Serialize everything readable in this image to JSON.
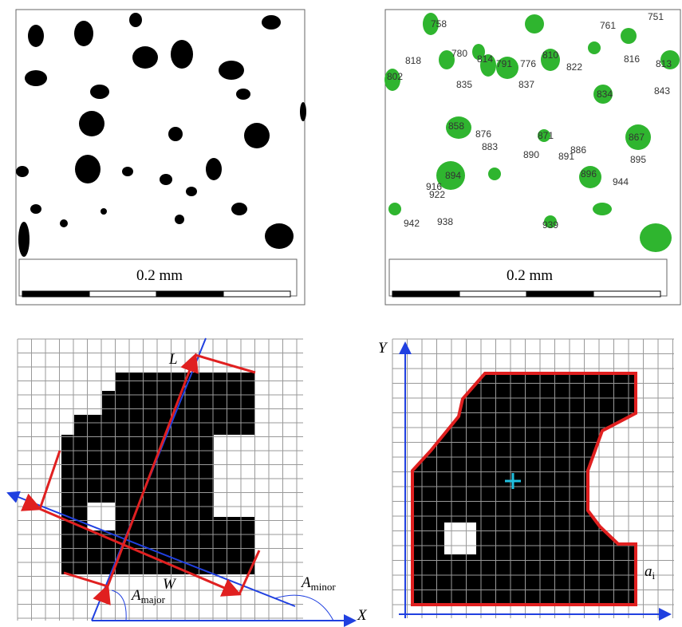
{
  "panels": {
    "binary": {
      "scale_label": "0.2 mm"
    },
    "labeled": {
      "scale_label": "0.2 mm",
      "particle_ids": [
        "758",
        "761",
        "751",
        "818",
        "780",
        "814",
        "791",
        "776",
        "810",
        "822",
        "816",
        "813",
        "802",
        "835",
        "837",
        "834",
        "843",
        "858",
        "876",
        "883",
        "871",
        "867",
        "890",
        "891",
        "886",
        "895",
        "894",
        "916",
        "922",
        "896",
        "944",
        "942",
        "938",
        "939"
      ]
    }
  },
  "diagrams": {
    "axes_fit": {
      "length_label": "L",
      "width_label": "W",
      "angle_major": {
        "symbol": "A",
        "subscript": "major"
      },
      "angle_minor": {
        "symbol": "A",
        "subscript": "minor"
      },
      "x_axis_label": "X"
    },
    "centroid": {
      "y_axis_label": "Y",
      "pixel_label": {
        "symbol": "a",
        "subscript": "i"
      }
    }
  }
}
